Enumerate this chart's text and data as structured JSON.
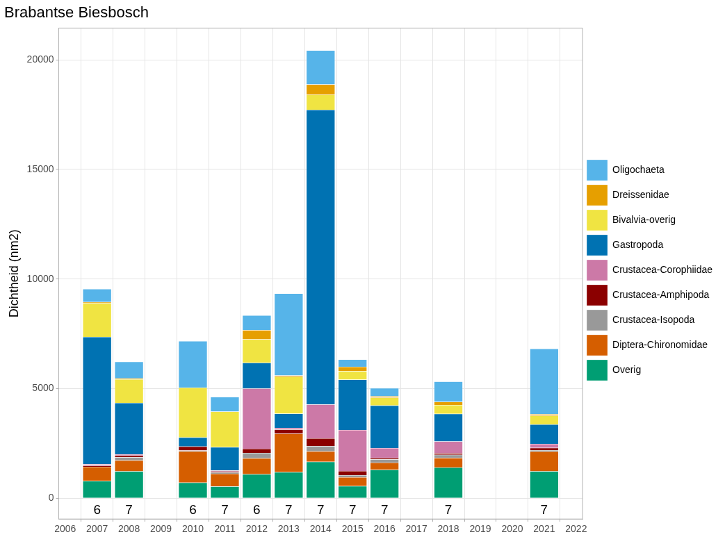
{
  "chart_data": {
    "type": "bar",
    "title": "Brabantse Biesbosch",
    "ylabel": "Dichtheid (nm2)",
    "stacked": true,
    "x": [
      2007,
      2008,
      2010,
      2011,
      2012,
      2013,
      2014,
      2015,
      2016,
      2018,
      2021
    ],
    "series": [
      {
        "name": "Overig",
        "color": "#009e73",
        "values": [
          780,
          1230,
          710,
          540,
          1090,
          1190,
          1660,
          550,
          1300,
          1400,
          1230
        ]
      },
      {
        "name": "Diptera-Chironomidae",
        "color": "#d55e00",
        "values": [
          650,
          500,
          1430,
          580,
          730,
          1760,
          480,
          410,
          320,
          440,
          900
        ]
      },
      {
        "name": "Crustacea-Isopoda",
        "color": "#999999",
        "values": [
          0,
          140,
          40,
          60,
          250,
          0,
          240,
          90,
          150,
          140,
          60
        ]
      },
      {
        "name": "Crustacea-Amphipoda",
        "color": "#8b0000",
        "values": [
          60,
          80,
          180,
          40,
          190,
          190,
          350,
          190,
          70,
          70,
          110
        ]
      },
      {
        "name": "Crustacea-Corophiidae",
        "color": "#cc79a7",
        "values": [
          60,
          50,
          0,
          50,
          2750,
          70,
          1550,
          1870,
          450,
          540,
          180
        ]
      },
      {
        "name": "Gastropoda",
        "color": "#0072b2",
        "values": [
          5810,
          2350,
          410,
          1060,
          1170,
          650,
          13440,
          2300,
          1940,
          1260,
          890
        ]
      },
      {
        "name": "Bivalvia-overig",
        "color": "#f0e442",
        "values": [
          1540,
          1080,
          2280,
          1620,
          1070,
          1680,
          690,
          390,
          360,
          400,
          390
        ]
      },
      {
        "name": "Dreissenidae",
        "color": "#e69f00",
        "values": [
          50,
          40,
          0,
          0,
          420,
          60,
          470,
          200,
          60,
          150,
          70
        ]
      },
      {
        "name": "Oligochaeta",
        "color": "#56b4e9",
        "values": [
          600,
          760,
          2120,
          670,
          670,
          3740,
          1550,
          330,
          370,
          920,
          2990
        ]
      }
    ],
    "xlim": [
      2005.8,
      2022.2
    ],
    "xticks": [
      2006,
      2007,
      2008,
      2009,
      2010,
      2011,
      2012,
      2013,
      2014,
      2015,
      2016,
      2017,
      2018,
      2019,
      2020,
      2021,
      2022
    ],
    "ylim": [
      -950,
      21450
    ],
    "yticks": [
      0,
      5000,
      10000,
      15000,
      20000
    ],
    "grid": true,
    "legend": "right",
    "annotations": [
      "6",
      "7",
      "6",
      "7",
      "6",
      "7",
      "7",
      "7",
      "7",
      "7",
      "7"
    ]
  }
}
